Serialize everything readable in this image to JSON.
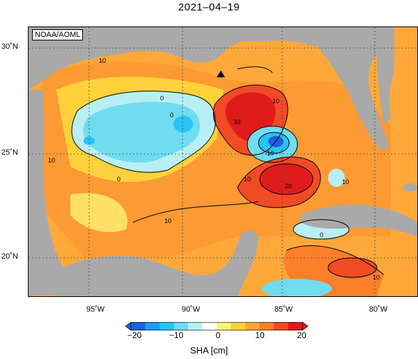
{
  "title": "2021–04–19",
  "credit": "NOAA/AOML",
  "map": {
    "region": "Gulf of Mexico",
    "lon_range": [
      -98.5,
      -77.5
    ],
    "lat_range": [
      18.0,
      31.0
    ],
    "marker": "triangle",
    "land_color": "#a9a9a9",
    "lat_labels": [
      "30˚N",
      "25˚N",
      "20˚N"
    ],
    "lon_labels": [
      "95˚W",
      "90˚W",
      "85˚W",
      "80˚W"
    ],
    "contour_labels": [
      "10",
      "0",
      "0",
      "0",
      "30",
      "10",
      "-10",
      "10",
      "20",
      "10",
      "10",
      "0",
      "10",
      "10"
    ]
  },
  "colorbar": {
    "title": "SHA [cm]",
    "ticks": [
      "−20",
      "−10",
      "0",
      "10",
      "20"
    ],
    "min": -20,
    "max": 20,
    "colors": [
      "#1f5fe0",
      "#1e9cf0",
      "#27c4f5",
      "#6fdcf0",
      "#b8eff5",
      "#ffffff",
      "#fff07a",
      "#ffd23c",
      "#ffa83a",
      "#fc7f2a",
      "#f04b25",
      "#e01b1b"
    ]
  }
}
